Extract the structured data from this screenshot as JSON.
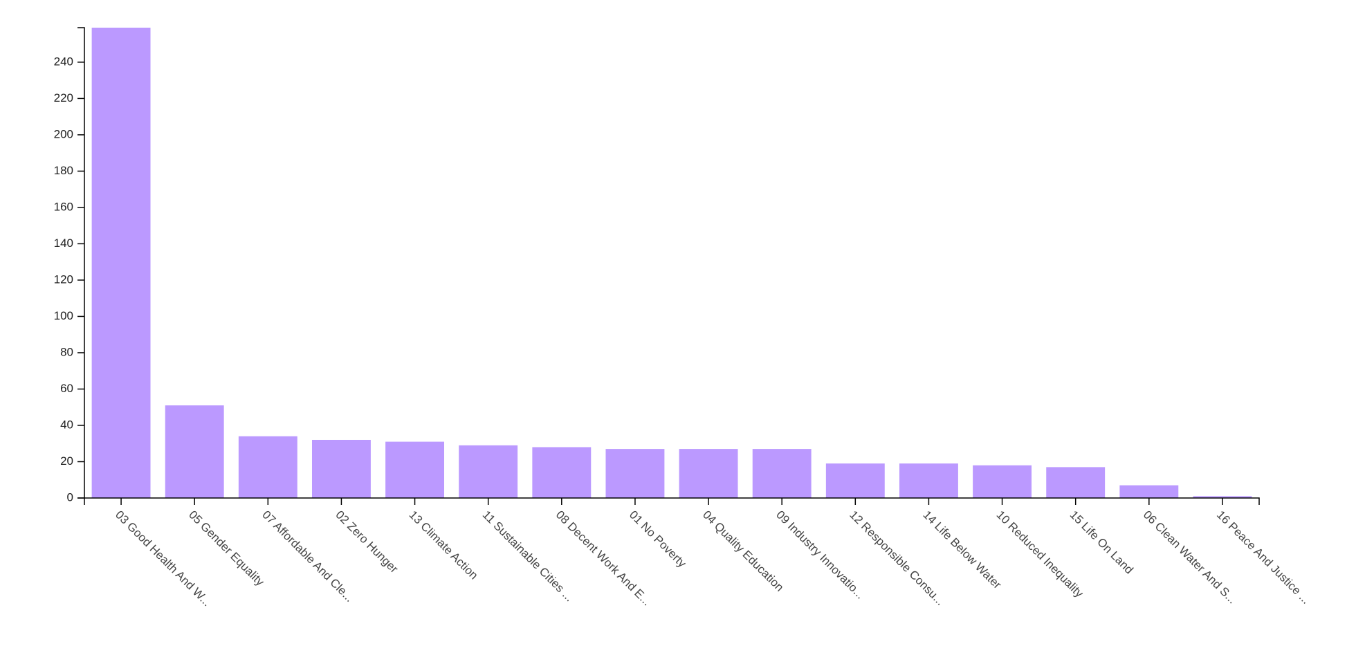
{
  "chart_data": {
    "type": "bar",
    "title": "",
    "xlabel": "",
    "ylabel": "",
    "ylim": [
      0,
      259
    ],
    "yticks": [
      0,
      20,
      40,
      60,
      80,
      100,
      120,
      140,
      160,
      180,
      200,
      220,
      240
    ],
    "bar_color": "#bb99ff",
    "grid": false,
    "legend": "none",
    "categories": [
      "03 Good Health And W...",
      "05 Gender Equality",
      "07 Affordable And Cle...",
      "02 Zero Hunger",
      "13 Climate Action",
      "11 Sustainable Cities ...",
      "08 Decent Work And E...",
      "01 No Poverty",
      "04 Quality Education",
      "09 Industry Innovatio...",
      "12 Responsible Consu...",
      "14 Life Below Water",
      "10 Reduced Inequality",
      "15 Life On Land",
      "06 Clean Water And S...",
      "16 Peace And Justice ..."
    ],
    "values": [
      259,
      51,
      34,
      32,
      31,
      29,
      28,
      27,
      27,
      27,
      19,
      19,
      18,
      17,
      7,
      1
    ]
  }
}
